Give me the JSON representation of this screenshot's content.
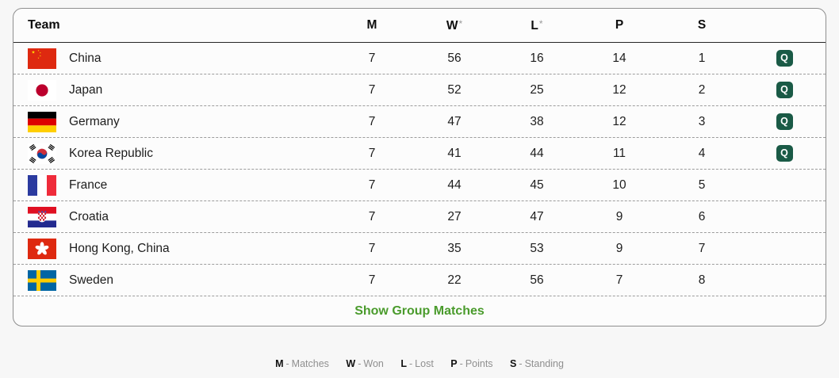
{
  "table": {
    "header": {
      "team": "Team",
      "m": "M",
      "w": "W",
      "w_asterisk": "*",
      "l": "L",
      "l_asterisk": "*",
      "p": "P",
      "s": "S"
    },
    "qualified_badge_label": "Q",
    "footer_link": "Show Group Matches",
    "rows": [
      {
        "team": "China",
        "flag": "china",
        "m": "7",
        "w": "56",
        "l": "16",
        "p": "14",
        "s": "1",
        "qualified": true
      },
      {
        "team": "Japan",
        "flag": "japan",
        "m": "7",
        "w": "52",
        "l": "25",
        "p": "12",
        "s": "2",
        "qualified": true
      },
      {
        "team": "Germany",
        "flag": "germany",
        "m": "7",
        "w": "47",
        "l": "38",
        "p": "12",
        "s": "3",
        "qualified": true
      },
      {
        "team": "Korea Republic",
        "flag": "korea-republic",
        "m": "7",
        "w": "41",
        "l": "44",
        "p": "11",
        "s": "4",
        "qualified": true
      },
      {
        "team": "France",
        "flag": "france",
        "m": "7",
        "w": "44",
        "l": "45",
        "p": "10",
        "s": "5",
        "qualified": false
      },
      {
        "team": "Croatia",
        "flag": "croatia",
        "m": "7",
        "w": "27",
        "l": "47",
        "p": "9",
        "s": "6",
        "qualified": false
      },
      {
        "team": "Hong Kong, China",
        "flag": "hong-kong-china",
        "m": "7",
        "w": "35",
        "l": "53",
        "p": "9",
        "s": "7",
        "qualified": false
      },
      {
        "team": "Sweden",
        "flag": "sweden",
        "m": "7",
        "w": "22",
        "l": "56",
        "p": "7",
        "s": "8",
        "qualified": false
      }
    ]
  },
  "legend": {
    "separator": "-",
    "items": [
      {
        "key": "M",
        "label": "Matches"
      },
      {
        "key": "W",
        "label": "Won"
      },
      {
        "key": "L",
        "label": "Lost"
      },
      {
        "key": "P",
        "label": "Points"
      },
      {
        "key": "S",
        "label": "Standing"
      }
    ]
  },
  "colors": {
    "qualified_badge": "#1a5a46",
    "link_green": "#4a9b2c"
  }
}
